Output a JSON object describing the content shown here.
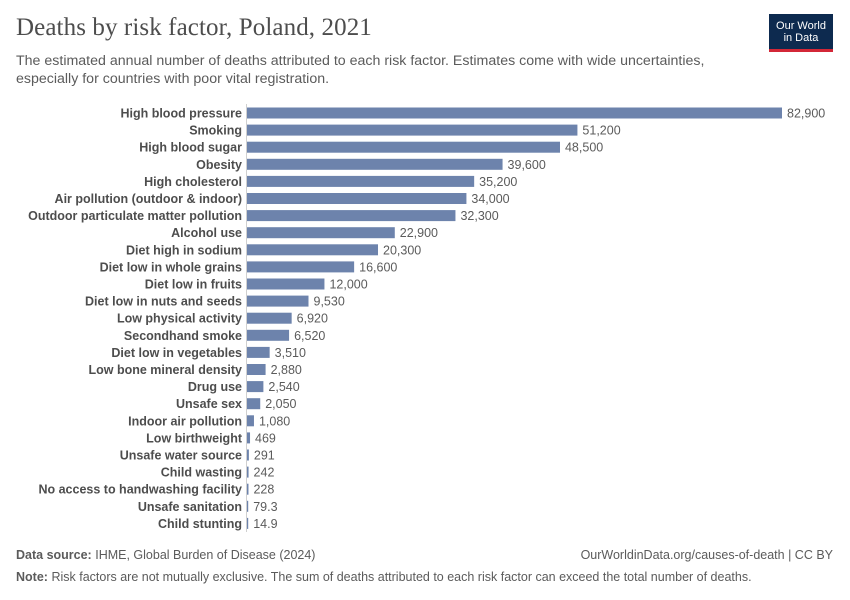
{
  "header": {
    "title": "Deaths by risk factor, Poland, 2021",
    "subtitle": "The estimated annual number of deaths attributed to each risk factor. Estimates come with wide uncertainties, especially for countries with poor vital registration.",
    "logo_line1": "Our World",
    "logo_line2": "in Data"
  },
  "footer": {
    "source_label": "Data source:",
    "source_text": "IHME, Global Burden of Disease (2024)",
    "url_text": "OurWorldinData.org/causes-of-death | CC BY",
    "note_label": "Note:",
    "note_text": "Risk factors are not mutually exclusive. The sum of deaths attributed to each risk factor can exceed the total number of deaths."
  },
  "colors": {
    "bar": "#6d83ac",
    "logo_bg": "#0d2a4f",
    "logo_accent": "#d32737"
  },
  "chart_data": {
    "type": "bar",
    "orientation": "horizontal",
    "title": "Deaths by risk factor, Poland, 2021",
    "xlabel": "",
    "ylabel": "",
    "grid": false,
    "categories": [
      "High blood pressure",
      "Smoking",
      "High blood sugar",
      "Obesity",
      "High cholesterol",
      "Air pollution (outdoor & indoor)",
      "Outdoor particulate matter pollution",
      "Alcohol use",
      "Diet high in sodium",
      "Diet low in whole grains",
      "Diet low in fruits",
      "Diet low in nuts and seeds",
      "Low physical activity",
      "Secondhand smoke",
      "Diet low in vegetables",
      "Low bone mineral density",
      "Drug use",
      "Unsafe sex",
      "Indoor air pollution",
      "Low birthweight",
      "Unsafe water source",
      "Child wasting",
      "No access to handwashing facility",
      "Unsafe sanitation",
      "Child stunting"
    ],
    "values": [
      82900,
      51200,
      48500,
      39600,
      35200,
      34000,
      32300,
      22900,
      20300,
      16600,
      12000,
      9530,
      6920,
      6520,
      3510,
      2880,
      2540,
      2050,
      1080,
      469,
      291,
      242,
      228,
      79.3,
      14.9
    ],
    "value_labels": [
      "82,900",
      "51,200",
      "48,500",
      "39,600",
      "35,200",
      "34,000",
      "32,300",
      "22,900",
      "20,300",
      "16,600",
      "12,000",
      "9,530",
      "6,920",
      "6,520",
      "3,510",
      "2,880",
      "2,540",
      "2,050",
      "1,080",
      "469",
      "291",
      "242",
      "228",
      "79.3",
      "14.9"
    ],
    "xlim": [
      0,
      82900
    ]
  }
}
